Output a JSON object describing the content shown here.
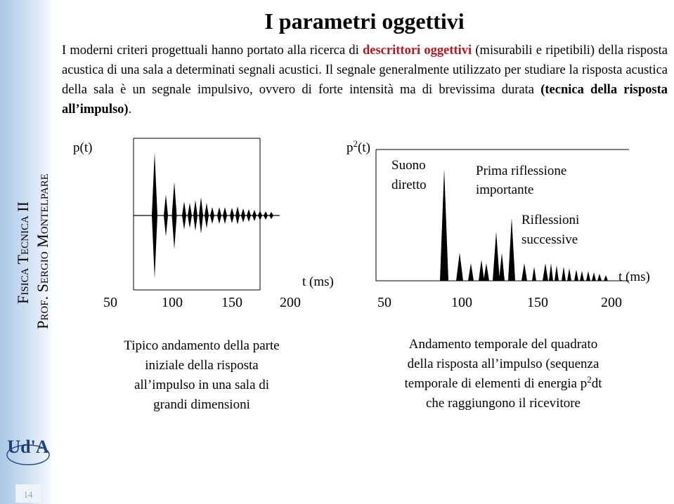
{
  "sidebar": {
    "course": "Fisica Tecnica II",
    "professor": "Prof. Sergio Montelpare",
    "logo": "Ud'A",
    "page_number": "14"
  },
  "title": "I parametri oggettivi",
  "intro": [
    "I moderni criteri progettuali hanno portato alla ricerca di ",
    "descrittori oggettivi",
    " (misurabili e ripetibili) della risposta acustica di una sala a determinati segnali acustici. Il segnale generalmente utilizzato per studiare la risposta acustica della sala è un segnale impulsivo, ovvero di forte intensità ma di brevissima durata ",
    "(tecnica della risposta all’impulso)",
    "."
  ],
  "left_figure": {
    "y_label": "p(t)",
    "x_label": "t (ms)",
    "x_ticks": [
      "50",
      "100",
      "150",
      "200"
    ],
    "caption": [
      "Tipico andamento della parte",
      "iniziale della risposta",
      "all’impulso in una sala di",
      "grandi dimensioni"
    ]
  },
  "right_figure": {
    "y_label": [
      "p",
      "2",
      "(t)"
    ],
    "x_label": "t (ms)",
    "x_ticks": [
      "50",
      "100",
      "150",
      "200"
    ],
    "annotations": [
      [
        "Suono",
        "diretto"
      ],
      [
        "Prima  riflessione",
        "importante"
      ],
      [
        "Riflessioni",
        "successive"
      ]
    ],
    "caption": [
      [
        "Andamento temporale del quadrato"
      ],
      [
        "della risposta all’impulso (sequenza"
      ],
      [
        "temporale di elementi di energia p",
        "2",
        "dt"
      ],
      [
        "che raggiungono il ricevitore"
      ]
    ]
  }
}
